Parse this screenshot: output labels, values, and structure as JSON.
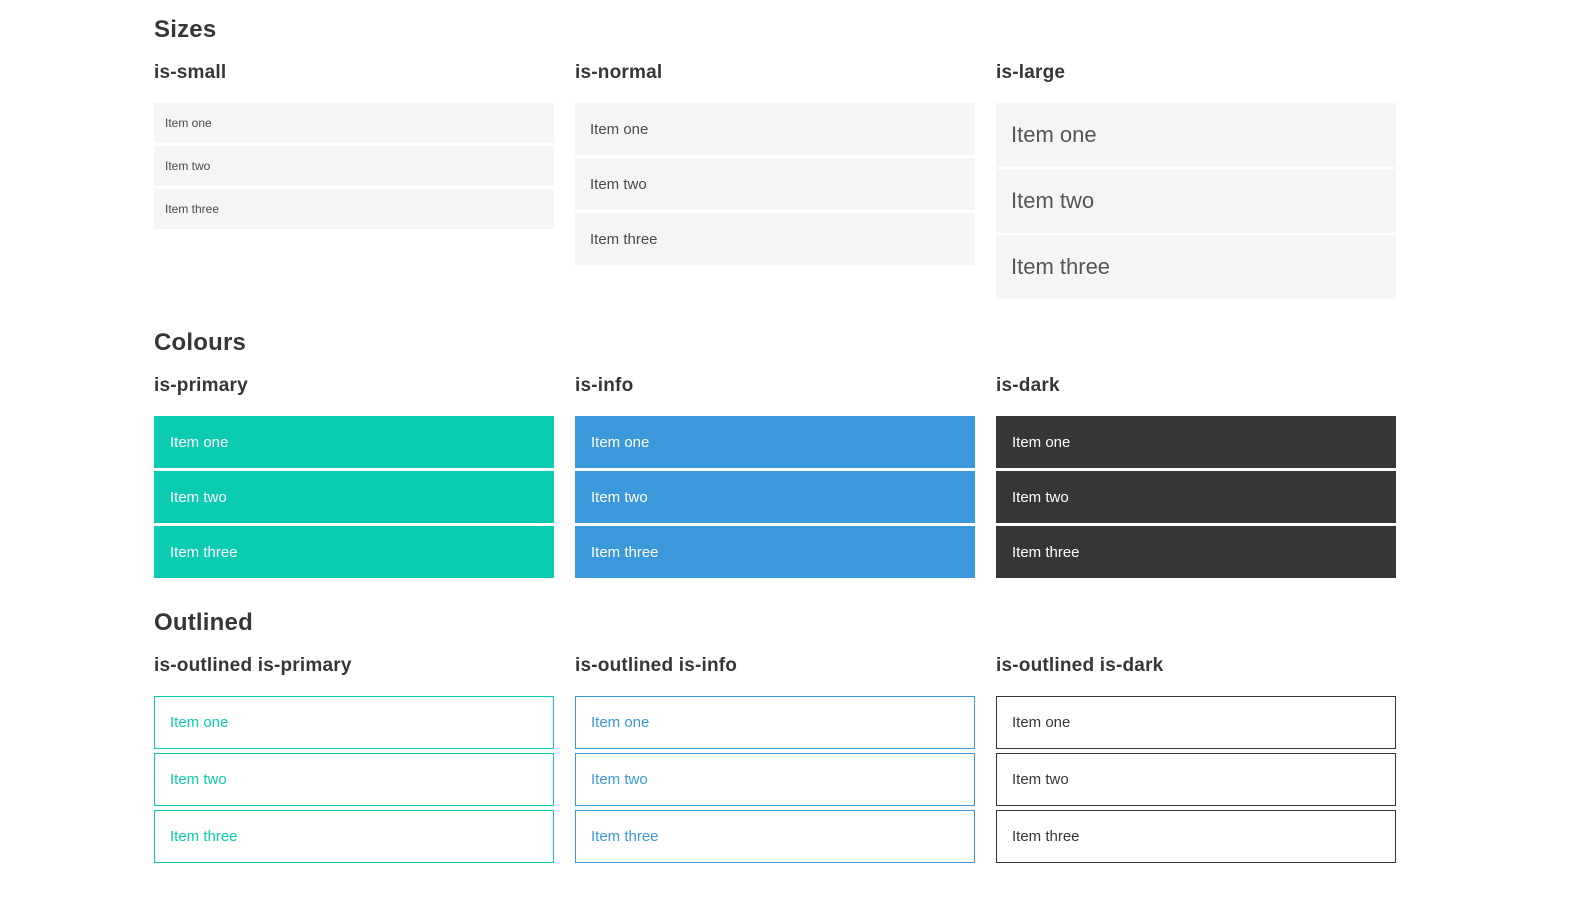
{
  "colors": {
    "primary": "#0bccb0",
    "info": "#3a98db",
    "dark": "#363636",
    "neutral_bg": "#f5f5f5",
    "neutral_text": "#4a4a4a",
    "heading_text": "#363636",
    "white_text": "#ffffff"
  },
  "sections": [
    {
      "title": "Sizes",
      "groups": [
        {
          "label": "is-small",
          "items": [
            "Item one",
            "Item two",
            "Item three"
          ]
        },
        {
          "label": "is-normal",
          "items": [
            "Item one",
            "Item two",
            "Item three"
          ]
        },
        {
          "label": "is-large",
          "items": [
            "Item one",
            "Item two",
            "Item three"
          ]
        }
      ]
    },
    {
      "title": "Colours",
      "groups": [
        {
          "label": "is-primary",
          "items": [
            "Item one",
            "Item two",
            "Item three"
          ]
        },
        {
          "label": "is-info",
          "items": [
            "Item one",
            "Item two",
            "Item three"
          ]
        },
        {
          "label": "is-dark",
          "items": [
            "Item one",
            "Item two",
            "Item three"
          ]
        }
      ]
    },
    {
      "title": "Outlined",
      "groups": [
        {
          "label": "is-outlined is-primary",
          "items": [
            "Item one",
            "Item two",
            "Item three"
          ]
        },
        {
          "label": "is-outlined is-info",
          "items": [
            "Item one",
            "Item two",
            "Item three"
          ]
        },
        {
          "label": "is-outlined is-dark",
          "items": [
            "Item one",
            "Item two",
            "Item three"
          ]
        }
      ]
    }
  ]
}
